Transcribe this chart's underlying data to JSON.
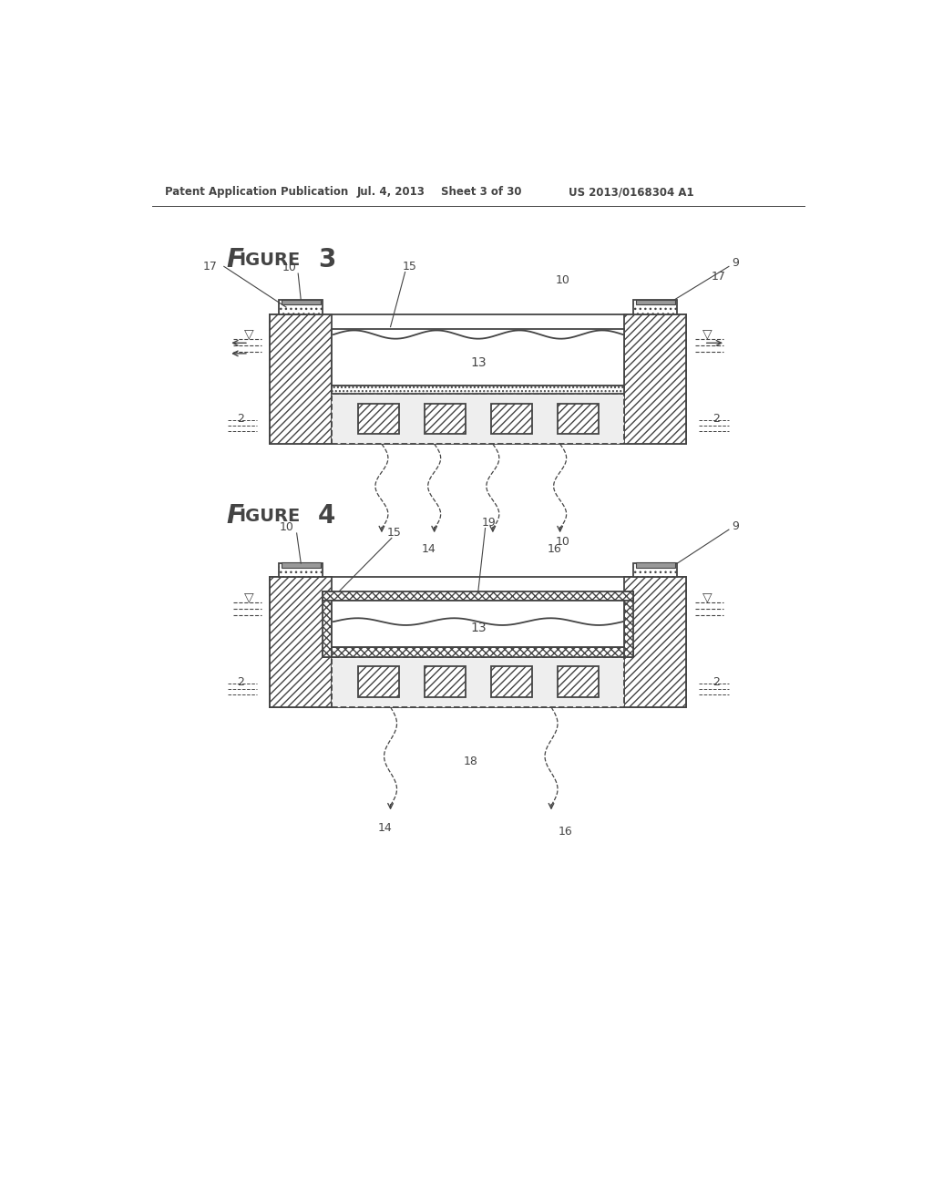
{
  "bg_color": "#ffffff",
  "line_color": "#444444",
  "fig3_title": "Figure 3",
  "fig4_title": "Figure 4",
  "header_left": "Patent Application Publication",
  "header_mid1": "Jul. 4, 2013",
  "header_mid2": "Sheet 3 of 30",
  "header_right": "US 2013/0168304 A1"
}
